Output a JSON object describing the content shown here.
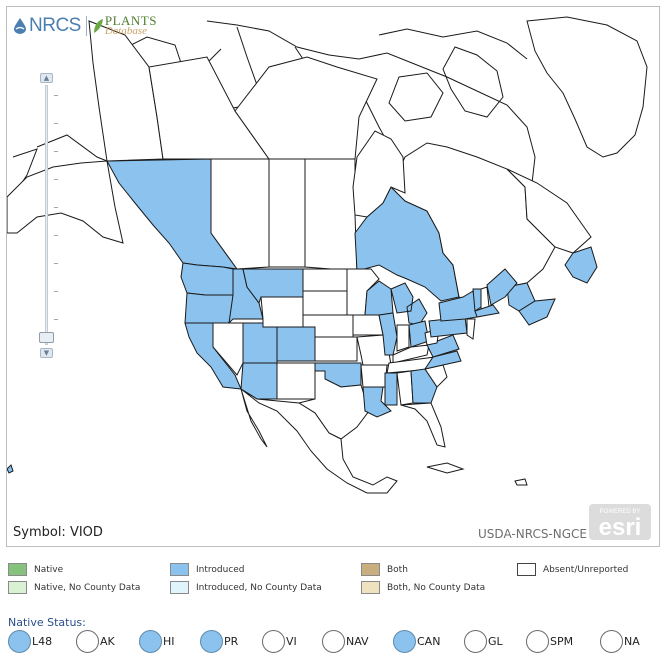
{
  "map": {
    "symbol_label": "Symbol: VIOD",
    "credit": "USDA-NRCS-NGCE",
    "esri_powered": "POWERED BY",
    "esri_text": "esri",
    "logo": {
      "nrcs": "NRCS",
      "plants": "PLANTS",
      "database": "Database"
    },
    "colors": {
      "introduced_fill": "#8cc3ee",
      "outline": "#1a1a1a",
      "background": "#ffffff"
    },
    "highlighted_regions": [
      "British Columbia",
      "Ontario",
      "Newfoundland",
      "Nova Scotia",
      "New Brunswick",
      "Washington",
      "Oregon",
      "California",
      "Idaho",
      "Montana",
      "Utah",
      "Colorado",
      "Arizona",
      "Oklahoma",
      "Louisiana",
      "Mississippi",
      "Georgia",
      "Illinois",
      "Wisconsin",
      "Michigan",
      "Ohio",
      "Pennsylvania",
      "New York",
      "Vermont",
      "Massachusetts",
      "Maine",
      "Virginia",
      "North Carolina",
      "Hawaii",
      "Puerto Rico"
    ]
  },
  "legend": {
    "native": "Native",
    "native_no_county": "Native, No County Data",
    "introduced": "Introduced",
    "introduced_no_county": "Introduced, No County Data",
    "both": "Both",
    "both_no_county": "Both, No County Data",
    "absent": "Absent/Unreported",
    "colors": {
      "native": "#86c17e",
      "native_no_county": "#d9f2d3",
      "introduced": "#8cc3ee",
      "introduced_no_county": "#dff4fb",
      "both": "#c9ae80",
      "both_no_county": "#efe2bf",
      "absent": "#ffffff"
    }
  },
  "native_status": {
    "heading": "Native Status:",
    "items": [
      {
        "label": "L48",
        "selected": true
      },
      {
        "label": "AK",
        "selected": false
      },
      {
        "label": "HI",
        "selected": true
      },
      {
        "label": "PR",
        "selected": true
      },
      {
        "label": "VI",
        "selected": false
      },
      {
        "label": "NAV",
        "selected": false
      },
      {
        "label": "CAN",
        "selected": true
      },
      {
        "label": "GL",
        "selected": false
      },
      {
        "label": "SPM",
        "selected": false
      },
      {
        "label": "NA",
        "selected": false
      }
    ]
  }
}
